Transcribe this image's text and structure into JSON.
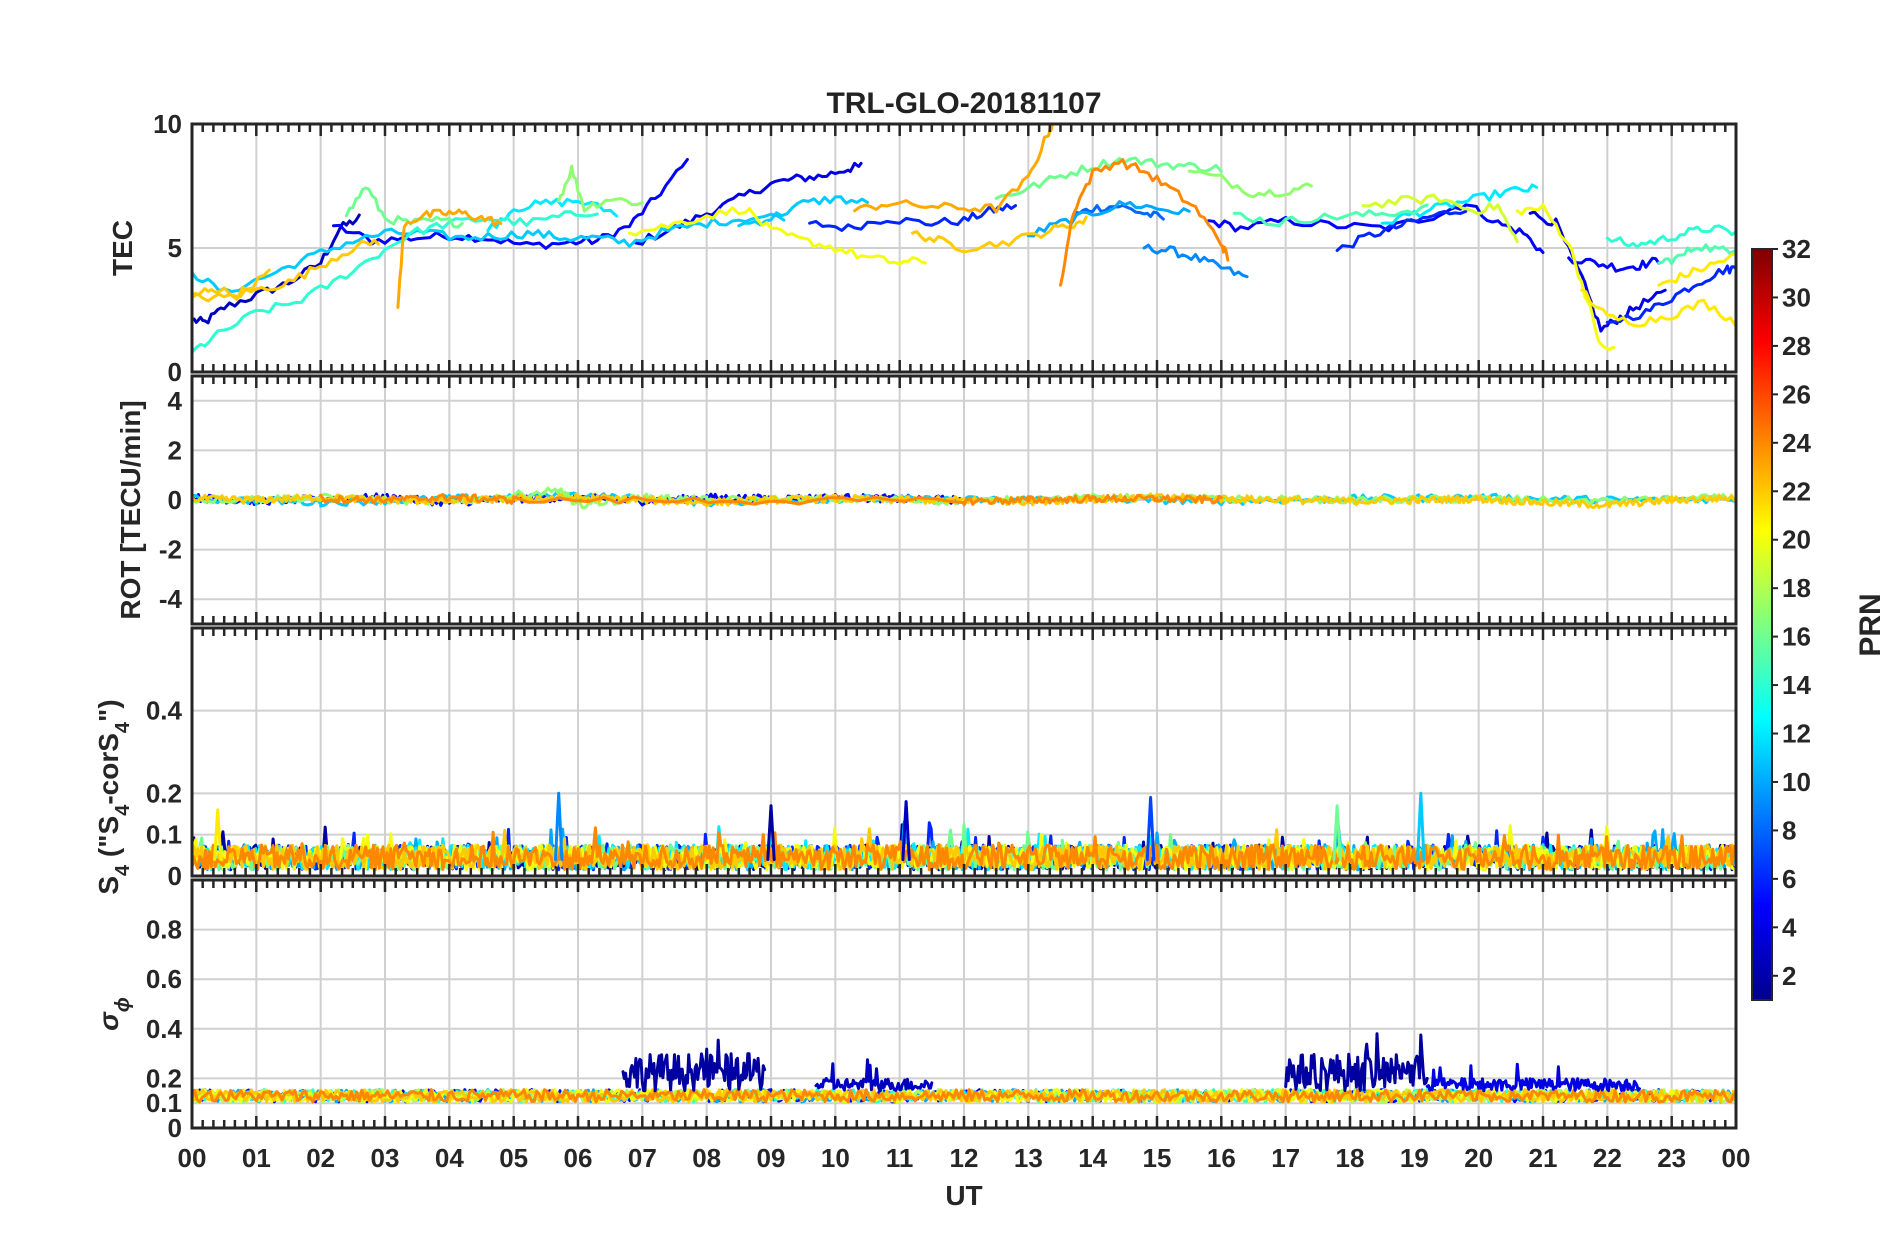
{
  "chart_data": {
    "type": "line",
    "title": "TRL-GLO-20181107",
    "xlabel": "UT",
    "x_tick_labels": [
      "00",
      "01",
      "02",
      "03",
      "04",
      "05",
      "06",
      "07",
      "08",
      "09",
      "10",
      "11",
      "12",
      "13",
      "14",
      "15",
      "16",
      "17",
      "18",
      "19",
      "20",
      "21",
      "22",
      "23",
      "00"
    ],
    "xlim": [
      0,
      24
    ],
    "panels": [
      {
        "id": "tec",
        "ylabel": "TEC",
        "ylim": [
          0,
          10
        ],
        "yticks": [
          0,
          5,
          10
        ],
        "ytick_labels": [
          "0",
          "5",
          "10"
        ]
      },
      {
        "id": "rot",
        "ylabel": "ROT [TECU/min]",
        "ylim": [
          -5,
          5
        ],
        "yticks": [
          -4,
          -2,
          0,
          2,
          4
        ],
        "ytick_labels": [
          "-4",
          "-2",
          "0",
          "2",
          "4"
        ]
      },
      {
        "id": "s4",
        "ylabel_main": "S",
        "ylabel_sub1": "4",
        "ylabel_mid": " (\"S",
        "ylabel_sub2": "4",
        "ylabel_mid2": "-corS",
        "ylabel_sub3": "4",
        "ylabel_end": "\")",
        "ylim": [
          0,
          0.6
        ],
        "yticks": [
          0,
          0.1,
          0.2,
          0.4
        ],
        "ytick_labels": [
          "0",
          "0.1",
          "0.2",
          "0.4"
        ]
      },
      {
        "id": "sigphi",
        "ylabel_main": "σ",
        "ylabel_sub": "ϕ",
        "ylim": [
          0,
          1.0
        ],
        "yticks": [
          0,
          0.1,
          0.2,
          0.4,
          0.6,
          0.8
        ],
        "ytick_labels": [
          "0",
          "0.1",
          "0.2",
          "0.4",
          "0.6",
          "0.8"
        ]
      }
    ],
    "colorbar": {
      "label": "PRN",
      "range": [
        1,
        32
      ],
      "tick_labels": [
        "2",
        "4",
        "6",
        "8",
        "10",
        "12",
        "14",
        "16",
        "18",
        "20",
        "22",
        "24",
        "26",
        "28",
        "30",
        "32"
      ],
      "colormap": "jet"
    },
    "tec_series": [
      {
        "prn": 3,
        "x": [
          0.0,
          0.2,
          0.5,
          1.0,
          1.5,
          2.0,
          2.3,
          2.6
        ],
        "y": [
          2.1,
          2.0,
          2.6,
          3.1,
          3.6,
          4.4,
          5.8,
          6.2
        ]
      },
      {
        "prn": 5,
        "x": [
          2.2,
          2.8,
          3.4,
          4.0,
          4.6,
          5.2,
          5.8,
          6.3,
          6.8,
          7.2,
          7.7
        ],
        "y": [
          5.9,
          5.3,
          5.4,
          5.5,
          5.4,
          5.1,
          5.2,
          5.3,
          5.9,
          7.0,
          8.5
        ]
      },
      {
        "prn": 4,
        "x": [
          6.9,
          7.5,
          8.0,
          8.5,
          9.0,
          9.4,
          9.8,
          10.2,
          10.4
        ],
        "y": [
          5.2,
          5.8,
          6.4,
          7.0,
          7.6,
          7.8,
          7.9,
          8.2,
          8.3
        ]
      },
      {
        "prn": 6,
        "x": [
          9.6,
          10.2,
          10.8,
          11.4,
          12.0,
          12.4,
          12.8
        ],
        "y": [
          6.0,
          5.8,
          6.2,
          6.0,
          6.1,
          6.5,
          6.7
        ]
      },
      {
        "prn": 8,
        "x": [
          13.7,
          14.0,
          14.4,
          14.8,
          15.1
        ],
        "y": [
          6.3,
          6.6,
          6.7,
          6.4,
          6.2
        ]
      },
      {
        "prn": 9,
        "x": [
          14.8,
          15.2,
          15.6,
          16.0,
          16.4
        ],
        "y": [
          5.0,
          4.9,
          4.6,
          4.2,
          3.8
        ]
      },
      {
        "prn": 5,
        "x": [
          15.8,
          16.3,
          17.0,
          17.8,
          18.6,
          19.3,
          19.8,
          20.3,
          20.7,
          21.0
        ],
        "y": [
          6.1,
          5.8,
          6.1,
          5.9,
          5.8,
          6.3,
          6.8,
          6.0,
          5.6,
          4.8
        ]
      },
      {
        "prn": 6,
        "x": [
          17.8,
          18.3,
          18.8,
          19.3,
          19.8
        ],
        "y": [
          4.9,
          5.5,
          5.9,
          6.3,
          6.6
        ]
      },
      {
        "prn": 4,
        "x": [
          20.8,
          21.2,
          21.6,
          21.9,
          22.2,
          22.5,
          22.9
        ],
        "y": [
          6.4,
          6.0,
          3.8,
          1.7,
          2.2,
          2.7,
          3.2
        ]
      },
      {
        "prn": 6,
        "x": [
          22.0,
          22.6,
          23.0,
          23.4,
          23.8,
          24.0
        ],
        "y": [
          2.0,
          2.4,
          3.0,
          3.6,
          4.1,
          4.2
        ]
      },
      {
        "prn": 5,
        "x": [
          21.4,
          21.8,
          22.2,
          22.5,
          22.8
        ],
        "y": [
          4.6,
          4.4,
          4.2,
          4.3,
          4.5
        ]
      },
      {
        "prn": 11,
        "x": [
          0.0,
          0.5,
          1.2,
          1.8,
          2.4,
          3.0,
          3.6,
          4.2,
          4.8,
          5.3,
          5.8,
          6.3,
          6.8,
          7.4,
          8.0,
          8.6,
          9.2
        ],
        "y": [
          4.0,
          3.2,
          3.9,
          4.6,
          5.2,
          5.6,
          5.6,
          5.4,
          5.5,
          5.6,
          5.4,
          5.4,
          5.2,
          5.7,
          6.0,
          6.2,
          6.3
        ]
      },
      {
        "prn": 12,
        "x": [
          4.6,
          5.0,
          5.5,
          6.0,
          6.6
        ],
        "y": [
          5.7,
          6.6,
          6.8,
          6.9,
          6.4
        ]
      },
      {
        "prn": 11,
        "x": [
          8.5,
          9.0,
          9.5,
          10.0,
          10.5
        ],
        "y": [
          5.9,
          6.2,
          6.8,
          7.0,
          6.8
        ]
      },
      {
        "prn": 10,
        "x": [
          13.0,
          13.5,
          14.0,
          14.5,
          15.0,
          15.5
        ],
        "y": [
          5.5,
          6.0,
          6.4,
          6.8,
          6.6,
          6.4
        ]
      },
      {
        "prn": 12,
        "x": [
          18.5,
          19.0,
          19.5,
          20.0,
          20.5,
          20.9
        ],
        "y": [
          6.0,
          6.4,
          6.7,
          7.0,
          7.3,
          7.4
        ]
      },
      {
        "prn": 14,
        "x": [
          0.0,
          0.4,
          1.0,
          1.6,
          2.2,
          2.8,
          3.4,
          4.0,
          4.6,
          5.2,
          5.8,
          6.3
        ],
        "y": [
          0.8,
          1.5,
          2.4,
          2.8,
          3.6,
          4.6,
          5.6,
          6.0,
          6.2,
          6.0,
          6.3,
          6.5
        ]
      },
      {
        "prn": 16,
        "x": [
          2.4,
          2.7,
          3.0,
          3.4,
          3.8,
          4.2
        ],
        "y": [
          6.3,
          7.5,
          6.2,
          6.0,
          6.1,
          6.0
        ]
      },
      {
        "prn": 17,
        "x": [
          5.7,
          5.9,
          6.1,
          6.5,
          7.0
        ],
        "y": [
          6.9,
          8.2,
          6.6,
          7.0,
          6.8
        ]
      },
      {
        "prn": 16,
        "x": [
          12.5,
          13.0,
          13.5,
          14.0,
          14.5,
          15.0,
          15.5,
          16.0
        ],
        "y": [
          7.0,
          7.4,
          7.9,
          8.3,
          8.6,
          8.4,
          8.3,
          8.2
        ]
      },
      {
        "prn": 17,
        "x": [
          15.5,
          16.0,
          16.5,
          17.0,
          17.4
        ],
        "y": [
          8.1,
          7.8,
          7.2,
          7.3,
          7.5
        ]
      },
      {
        "prn": 15,
        "x": [
          16.2,
          16.8,
          17.4,
          18.0,
          18.6,
          19.2
        ],
        "y": [
          6.4,
          6.0,
          6.2,
          6.3,
          6.4,
          6.6
        ]
      },
      {
        "prn": 14,
        "x": [
          22.0,
          22.4,
          22.8,
          23.2,
          23.6,
          24.0
        ],
        "y": [
          5.4,
          5.1,
          5.3,
          5.6,
          5.8,
          5.6
        ]
      },
      {
        "prn": 15,
        "x": [
          22.8,
          23.1,
          23.4,
          23.8,
          24.0
        ],
        "y": [
          4.4,
          4.6,
          5.1,
          4.9,
          5.0
        ]
      },
      {
        "prn": 20,
        "x": [
          6.8,
          7.4,
          8.0,
          8.6,
          9.0,
          9.5,
          10.0,
          10.5,
          11.0,
          11.4
        ],
        "y": [
          5.6,
          5.9,
          6.3,
          6.6,
          5.7,
          5.3,
          5.0,
          4.6,
          4.4,
          4.5
        ]
      },
      {
        "prn": 19,
        "x": [
          18.2,
          18.8,
          19.4,
          19.9,
          20.3,
          20.6
        ],
        "y": [
          6.7,
          6.9,
          7.0,
          6.5,
          6.7,
          5.2
        ]
      },
      {
        "prn": 20,
        "x": [
          20.6,
          21.0,
          21.4,
          21.7,
          21.9,
          22.1
        ],
        "y": [
          6.5,
          6.6,
          5.2,
          2.8,
          1.0,
          0.9
        ]
      },
      {
        "prn": 21,
        "x": [
          22.8,
          23.2,
          23.6,
          24.0
        ],
        "y": [
          3.5,
          3.9,
          4.3,
          4.7
        ]
      },
      {
        "prn": 22,
        "x": [
          0.0,
          0.3,
          0.7,
          1.2
        ],
        "y": [
          3.0,
          3.4,
          3.1,
          4.0
        ]
      },
      {
        "prn": 22,
        "x": [
          0.0,
          0.5,
          1.0,
          1.5,
          2.0,
          2.5,
          2.9
        ],
        "y": [
          3.0,
          3.0,
          3.3,
          3.6,
          4.3,
          5.0,
          5.3
        ]
      },
      {
        "prn": 23,
        "x": [
          3.2,
          3.3,
          3.6,
          3.9,
          4.2,
          4.5,
          4.8
        ],
        "y": [
          2.6,
          6.0,
          6.3,
          6.4,
          6.4,
          6.2,
          6.0
        ]
      },
      {
        "prn": 23,
        "x": [
          10.3,
          10.8,
          11.4,
          12.0,
          12.5,
          13.0,
          13.3,
          13.4
        ],
        "y": [
          6.5,
          6.8,
          6.7,
          6.6,
          6.6,
          7.8,
          9.6,
          10.1
        ]
      },
      {
        "prn": 22,
        "x": [
          11.2,
          11.6,
          12.0,
          12.6,
          13.2,
          13.6,
          13.9
        ],
        "y": [
          5.6,
          5.3,
          5.0,
          5.2,
          5.6,
          5.9,
          6.1
        ]
      },
      {
        "prn": 24,
        "x": [
          13.5,
          13.7,
          14.0,
          14.4,
          14.8,
          15.2,
          15.6,
          16.0,
          16.1
        ],
        "y": [
          3.5,
          6.5,
          8.0,
          8.5,
          8.1,
          7.4,
          6.6,
          5.2,
          4.6
        ]
      },
      {
        "prn": 21,
        "x": [
          21.6,
          22.0,
          22.5,
          23.0,
          23.5,
          24.0
        ],
        "y": [
          3.3,
          2.2,
          2.0,
          2.3,
          2.8,
          2.0
        ]
      }
    ],
    "rot_series": [
      {
        "prn": 5,
        "x": [
          0,
          1,
          2,
          3,
          4,
          5,
          6,
          7,
          8,
          9,
          10,
          11,
          12
        ],
        "y": [
          0.1,
          -0.05,
          0.05,
          0.1,
          -0.1,
          0.05,
          0.1,
          -0.05,
          0.1,
          0.05,
          0.1,
          0.05,
          0.0
        ]
      },
      {
        "prn": 11,
        "x": [
          0,
          2,
          4,
          6,
          8,
          10,
          12,
          14,
          16,
          18,
          20,
          22,
          24
        ],
        "y": [
          0.05,
          -0.1,
          0.05,
          0.2,
          -0.1,
          0.05,
          0.0,
          0.05,
          -0.05,
          0.05,
          0.1,
          0.0,
          0.05
        ]
      },
      {
        "prn": 17,
        "x": [
          0,
          2,
          4,
          5.7,
          6,
          7,
          8,
          10,
          12,
          14,
          16,
          18,
          20,
          22,
          24
        ],
        "y": [
          0.0,
          0.1,
          -0.1,
          0.4,
          -0.2,
          0.1,
          0.0,
          0.05,
          -0.05,
          0.1,
          0.05,
          0.0,
          0.05,
          -0.05,
          0.1
        ]
      },
      {
        "prn": 22,
        "x": [
          0,
          1,
          2,
          3,
          4,
          5,
          6,
          7,
          8,
          9,
          10,
          11,
          12,
          13,
          14,
          15,
          16,
          17,
          18,
          19,
          20,
          21,
          22,
          23,
          24
        ],
        "y": [
          0.05,
          0.0,
          0.1,
          0.0,
          -0.05,
          0.05,
          0.1,
          0.0,
          -0.1,
          0.0,
          0.05,
          0.0,
          0.0,
          -0.05,
          0.05,
          0.1,
          0.05,
          0.0,
          -0.05,
          0.0,
          0.05,
          -0.1,
          -0.2,
          0.0,
          0.1
        ]
      },
      {
        "prn": 24,
        "x": [
          2,
          3,
          4,
          5,
          12,
          13,
          14,
          15,
          16
        ],
        "y": [
          0.05,
          0.0,
          0.1,
          0.0,
          -0.05,
          0.0,
          0.05,
          0.05,
          0.0
        ]
      }
    ],
    "s4_noise": {
      "baseline": 0.05,
      "peak_max": 0.2,
      "peaks": [
        {
          "x": 5.7,
          "y": 0.2,
          "prn": 9
        },
        {
          "x": 11.1,
          "y": 0.18,
          "prn": 3
        },
        {
          "x": 14.9,
          "y": 0.19,
          "prn": 7
        },
        {
          "x": 19.1,
          "y": 0.2,
          "prn": 11
        },
        {
          "x": 17.8,
          "y": 0.17,
          "prn": 16
        },
        {
          "x": 0.4,
          "y": 0.16,
          "prn": 21
        },
        {
          "x": 9.0,
          "y": 0.17,
          "prn": 2
        }
      ]
    },
    "sigphi_noise": {
      "baseline": 0.13,
      "high_intervals": [
        {
          "x": [
            6.7,
            8.9
          ],
          "y": 0.3,
          "prn": 2
        },
        {
          "x": [
            9.7,
            11.5
          ],
          "y": 0.2,
          "prn": 3
        },
        {
          "x": [
            17.0,
            19.2
          ],
          "y": 0.3,
          "prn": 2
        },
        {
          "x": [
            19.2,
            22.5
          ],
          "y": 0.2,
          "prn": 4
        }
      ]
    }
  }
}
